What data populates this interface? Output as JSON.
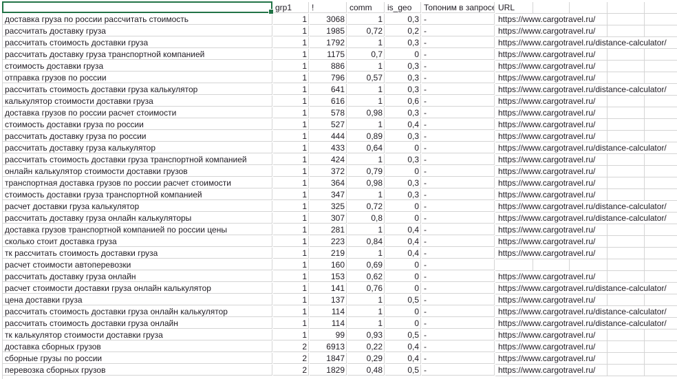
{
  "sheet": {
    "headers": [
      "",
      "grp1",
      "!",
      "comm",
      "is_geo",
      "Топоним в запросе",
      "URL"
    ],
    "rows": [
      [
        "доставка груза по россии рассчитать стоимость",
        "1",
        "3068",
        "1",
        "0,3",
        "-",
        "https://www.cargotravel.ru/"
      ],
      [
        "рассчитать доставку груза",
        "1",
        "1985",
        "0,72",
        "0,2",
        "-",
        "https://www.cargotravel.ru/"
      ],
      [
        "рассчитать стоимость доставки груза",
        "1",
        "1792",
        "1",
        "0,3",
        "-",
        "https://www.cargotravel.ru/distance-calculator/"
      ],
      [
        "рассчитать доставку груза транспортной компанией",
        "1",
        "1175",
        "0,7",
        "0",
        "-",
        "https://www.cargotravel.ru/"
      ],
      [
        "стоимость доставки груза",
        "1",
        "886",
        "1",
        "0,3",
        "-",
        "https://www.cargotravel.ru/"
      ],
      [
        "отправка грузов по россии",
        "1",
        "796",
        "0,57",
        "0,3",
        "-",
        "https://www.cargotravel.ru/"
      ],
      [
        "рассчитать стоимость доставки груза калькулятор",
        "1",
        "641",
        "1",
        "0,3",
        "-",
        "https://www.cargotravel.ru/distance-calculator/"
      ],
      [
        "калькулятор стоимости доставки груза",
        "1",
        "616",
        "1",
        "0,6",
        "-",
        "https://www.cargotravel.ru/"
      ],
      [
        "доставка грузов по россии расчет стоимости",
        "1",
        "578",
        "0,98",
        "0,3",
        "-",
        "https://www.cargotravel.ru/"
      ],
      [
        "стоимость доставки груза по россии",
        "1",
        "527",
        "1",
        "0,4",
        "-",
        "https://www.cargotravel.ru/"
      ],
      [
        "рассчитать доставку груза по россии",
        "1",
        "444",
        "0,89",
        "0,3",
        "-",
        "https://www.cargotravel.ru/"
      ],
      [
        "рассчитать доставку груза калькулятор",
        "1",
        "433",
        "0,64",
        "0",
        "-",
        "https://www.cargotravel.ru/distance-calculator/"
      ],
      [
        "рассчитать стоимость доставки груза транспортной компанией",
        "1",
        "424",
        "1",
        "0,3",
        "-",
        "https://www.cargotravel.ru/"
      ],
      [
        "онлайн калькулятор стоимости доставки грузов",
        "1",
        "372",
        "0,79",
        "0",
        "-",
        "https://www.cargotravel.ru/"
      ],
      [
        "транспортная доставка грузов по россии расчет стоимости",
        "1",
        "364",
        "0,98",
        "0,3",
        "-",
        "https://www.cargotravel.ru/"
      ],
      [
        "стоимость доставки груза транспортной компанией",
        "1",
        "347",
        "1",
        "0,3",
        "-",
        "https://www.cargotravel.ru/"
      ],
      [
        "расчет доставки груза калькулятор",
        "1",
        "325",
        "0,72",
        "0",
        "-",
        "https://www.cargotravel.ru/distance-calculator/"
      ],
      [
        "рассчитать доставку груза онлайн калькуляторы",
        "1",
        "307",
        "0,8",
        "0",
        "-",
        "https://www.cargotravel.ru/distance-calculator/"
      ],
      [
        "доставка грузов транспортной компанией по россии цены",
        "1",
        "281",
        "1",
        "0,4",
        "-",
        "https://www.cargotravel.ru/"
      ],
      [
        "сколько стоит доставка груза",
        "1",
        "223",
        "0,84",
        "0,4",
        "-",
        "https://www.cargotravel.ru/"
      ],
      [
        "тк рассчитать стоимость доставки груза",
        "1",
        "219",
        "1",
        "0,4",
        "-",
        "https://www.cargotravel.ru/"
      ],
      [
        "расчет стоимости автоперевозки",
        "1",
        "160",
        "0,69",
        "0",
        "-",
        ""
      ],
      [
        "рассчитать доставку груза онлайн",
        "1",
        "153",
        "0,62",
        "0",
        "-",
        "https://www.cargotravel.ru/"
      ],
      [
        "расчет стоимости доставки груза онлайн калькулятор",
        "1",
        "141",
        "0,76",
        "0",
        "-",
        "https://www.cargotravel.ru/distance-calculator/"
      ],
      [
        "цена доставки груза",
        "1",
        "137",
        "1",
        "0,5",
        "-",
        "https://www.cargotravel.ru/"
      ],
      [
        "рассчитать стоимость доставки груза онлайн калькулятор",
        "1",
        "114",
        "1",
        "0",
        "-",
        "https://www.cargotravel.ru/distance-calculator/"
      ],
      [
        "рассчитать стоимость доставки груза онлайн",
        "1",
        "114",
        "1",
        "0",
        "-",
        "https://www.cargotravel.ru/distance-calculator/"
      ],
      [
        "тк калькулятор стоимости доставки груза",
        "1",
        "99",
        "0,93",
        "0,5",
        "-",
        "https://www.cargotravel.ru/"
      ],
      [
        "доставка сборных грузов",
        "2",
        "6913",
        "0,22",
        "0,4",
        "-",
        "https://www.cargotravel.ru/"
      ],
      [
        "сборные грузы по россии",
        "2",
        "1847",
        "0,29",
        "0,4",
        "-",
        "https://www.cargotravel.ru/"
      ],
      [
        "перевозка сборных грузов",
        "2",
        "1829",
        "0,48",
        "0,5",
        "-",
        "https://www.cargotravel.ru/"
      ]
    ]
  },
  "colors": {
    "selection": "#217346",
    "gridline": "#d4d4d4"
  }
}
